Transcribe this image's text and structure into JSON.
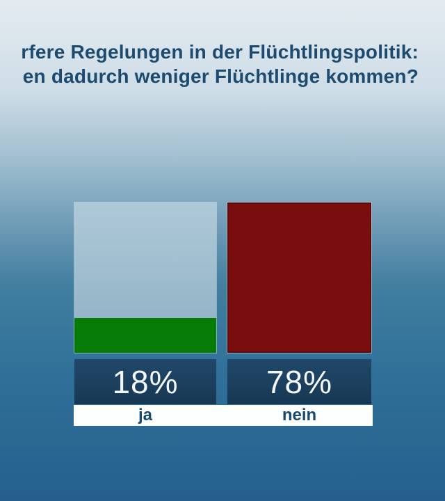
{
  "headline": {
    "line1": "rfere Regelungen in der Flüchtlingspolitik:",
    "line2": "en dadurch weniger Flüchtlinge kommen?"
  },
  "chart_data": {
    "type": "bar",
    "title": "rfere Regelungen in der Flüchtlingspolitik: en dadurch weniger Flüchtlinge kommen?",
    "categories": [
      "ja",
      "nein"
    ],
    "values": [
      18,
      78
    ],
    "value_labels": [
      "18%",
      "78%"
    ],
    "ylim": [
      0,
      78
    ],
    "bar_colors": [
      "#067c06",
      "#7a0d0d"
    ],
    "track_color": "#a3c0d1",
    "grid": false,
    "legend_position": "none"
  },
  "colors": {
    "headline_text": "#1d4b70",
    "value_box_bg": "#1c4160",
    "value_text": "#f3f7fa",
    "axis_strip_bg": "#fdfefe",
    "axis_label_text": "#19496d",
    "background_top": "#e3eaef",
    "background_bottom": "#25608c"
  }
}
